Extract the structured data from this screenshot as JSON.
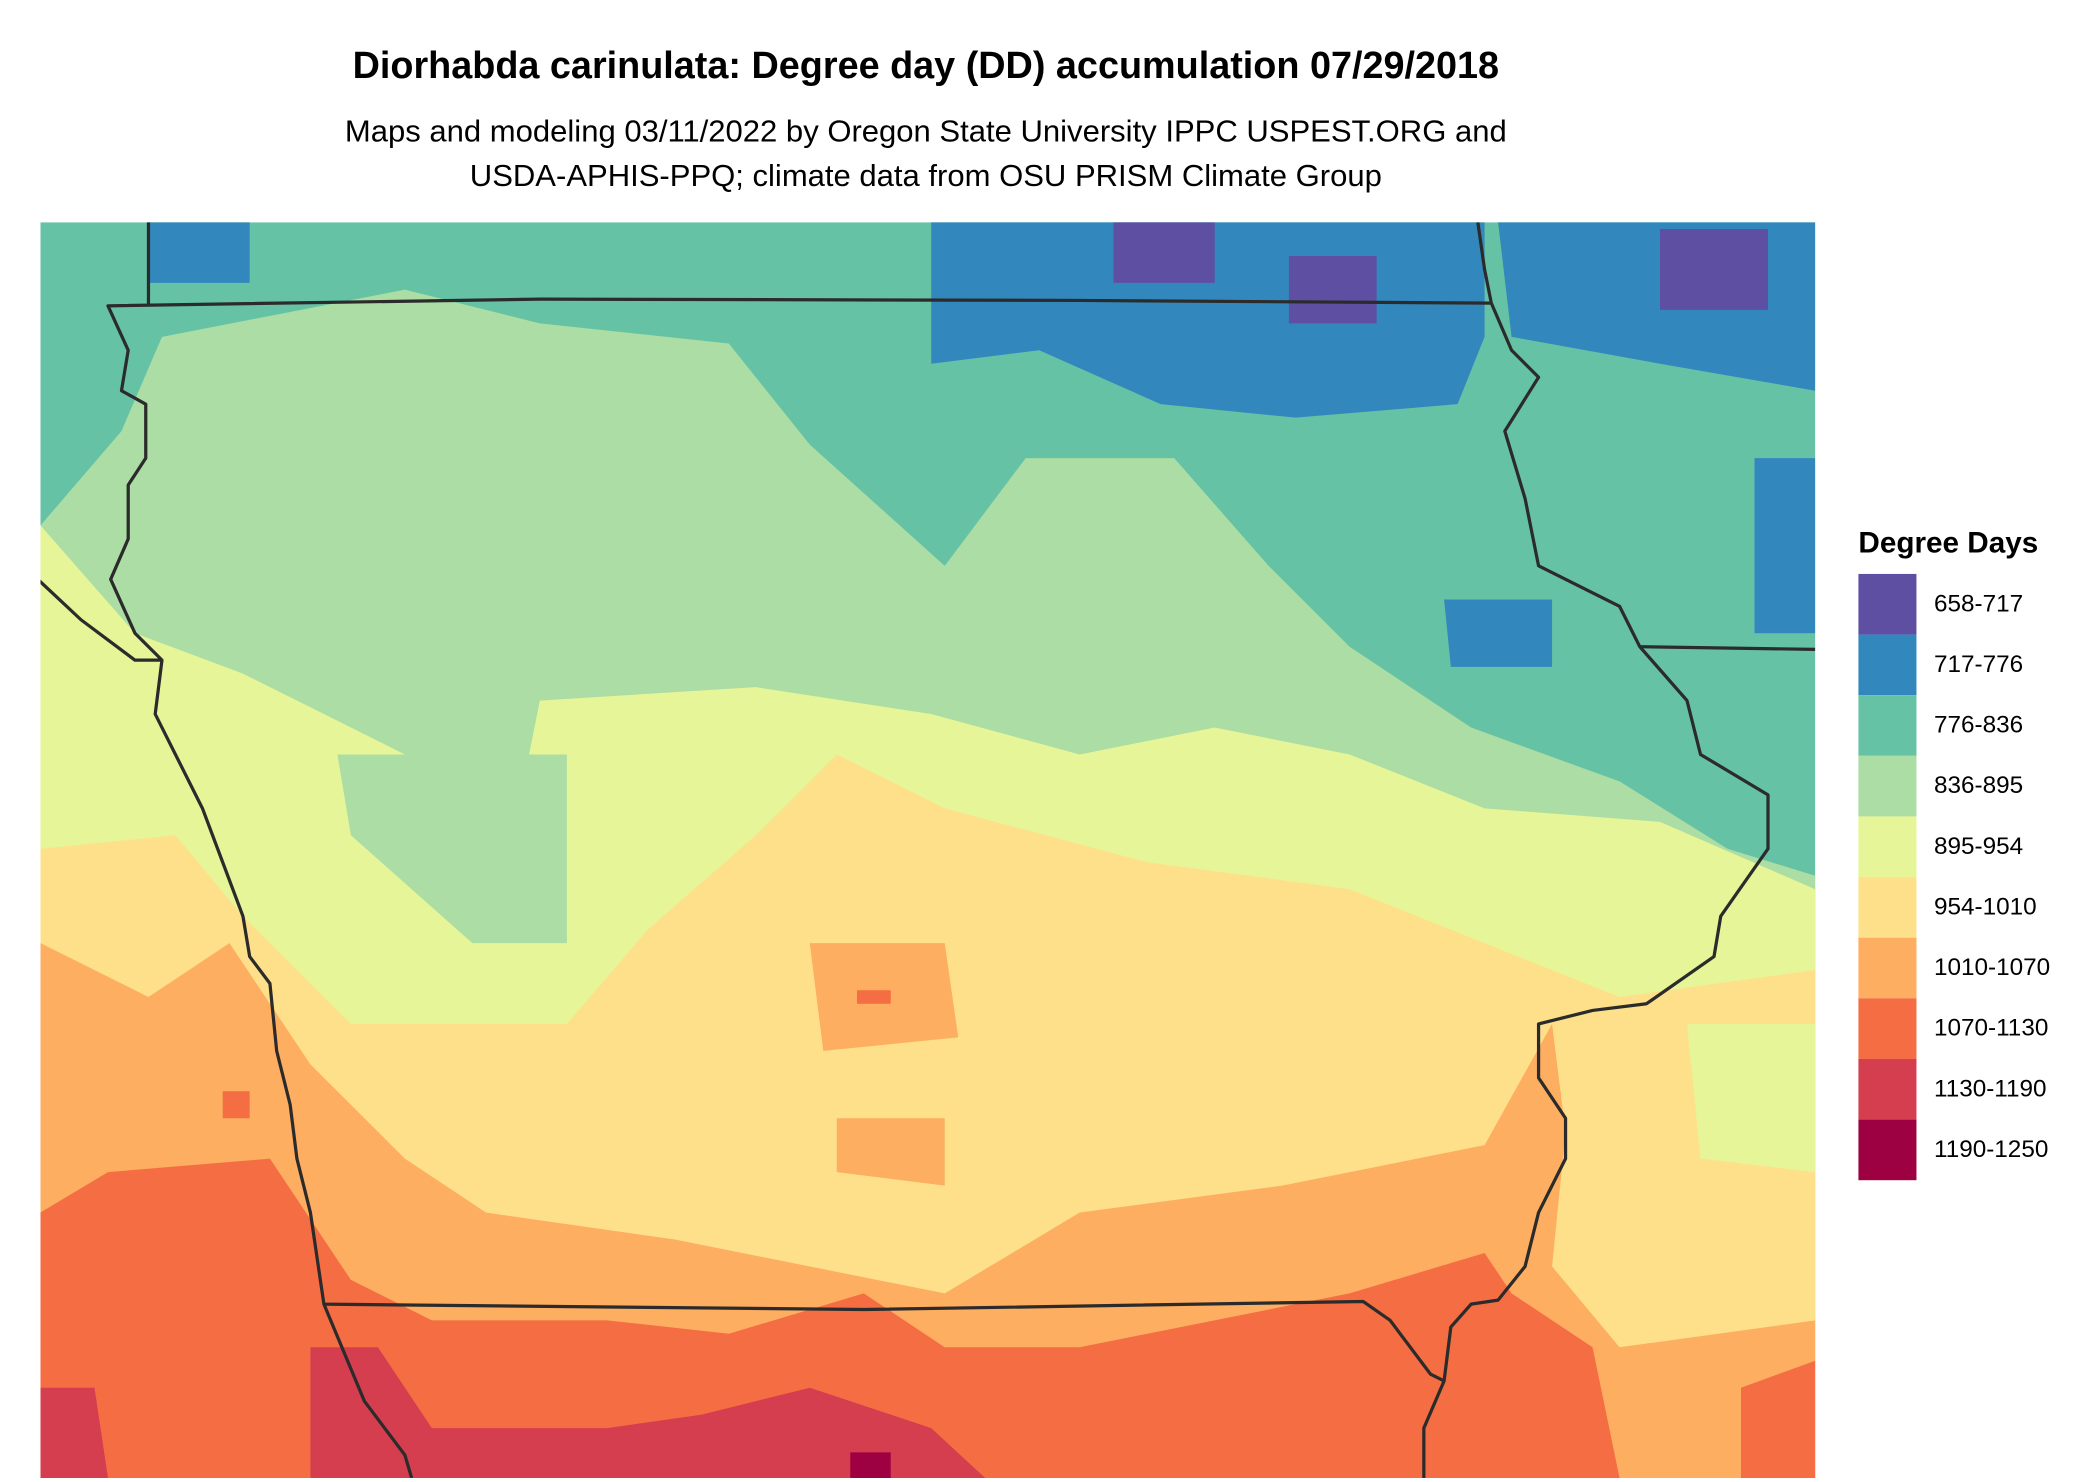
{
  "title": "Diorhabda carinulata: Degree day (DD) accumulation 07/29/2018",
  "subtitle": [
    "Maps and modeling 03/11/2022 by Oregon State University IPPC USPEST.ORG and",
    "USDA-APHIS-PPQ; climate data from OSU PRISM Climate Group"
  ],
  "legend": {
    "title": "Degree Days",
    "items": [
      {
        "label": "658-717",
        "color": "#5e4fa2"
      },
      {
        "label": "717-776",
        "color": "#3288bd"
      },
      {
        "label": "776-836",
        "color": "#66c2a5"
      },
      {
        "label": "836-895",
        "color": "#abdda4"
      },
      {
        "label": "895-954",
        "color": "#e6f598"
      },
      {
        "label": "954-1010",
        "color": "#fee08b"
      },
      {
        "label": "1010-1070",
        "color": "#fdae61"
      },
      {
        "label": "1070-1130",
        "color": "#f46d43"
      },
      {
        "label": "1130-1190",
        "color": "#d53e4f"
      },
      {
        "label": "1190-1250",
        "color": "#9e0142"
      }
    ]
  }
}
